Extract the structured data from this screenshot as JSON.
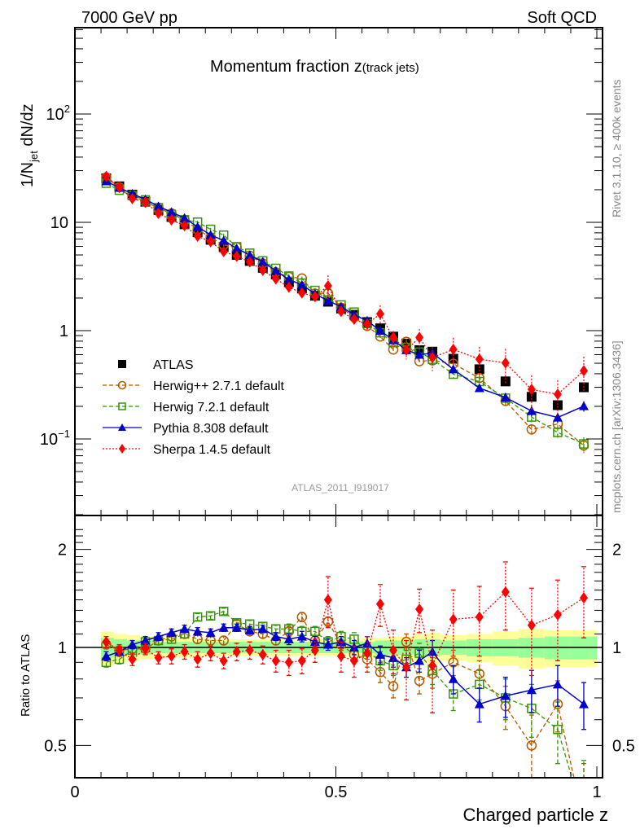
{
  "chart_data": {
    "type": "scatter",
    "header_left": "7000 GeV pp",
    "header_right": "Soft QCD",
    "title": "Momentum fraction z",
    "title_suffix": "(track jets)",
    "analysis_id": "ATLAS_2011_I919017",
    "side_label_top": "Rivet 3.1.10, ≥ 400k events",
    "side_label_bottom": "mcplots.cern.ch [arXiv:1306.3436]",
    "xlabel": "Charged particle z",
    "ylabel": "1/N_jet dN/dz",
    "ylabel_main": "1/N",
    "ylabel_sub": "jet",
    "ylabel_rest": " dN/dz",
    "ratio_ylabel": "Ratio to ATLAS",
    "xlim": [
      0,
      1.02
    ],
    "ylim": [
      0.022,
      700
    ],
    "ratio_ylim": [
      0.42,
      2.4
    ],
    "yscale": "log",
    "ratio_yscale": "log",
    "x_ticks": [
      {
        "value": 0,
        "label": "0"
      },
      {
        "value": 0.5,
        "label": "0.5"
      },
      {
        "value": 1,
        "label": "1"
      }
    ],
    "y_ticks": [
      {
        "value": 100,
        "label": "10",
        "sup": "2"
      },
      {
        "value": 10,
        "label": "10",
        "sup": ""
      },
      {
        "value": 1,
        "label": "1",
        "sup": ""
      },
      {
        "value": 0.1,
        "label": "10",
        "sup": "−1"
      }
    ],
    "ratio_ticks": [
      {
        "value": 2,
        "label": "2"
      },
      {
        "value": 1,
        "label": "1"
      },
      {
        "value": 0.5,
        "label": "0.5"
      }
    ],
    "x": [
      0.06,
      0.085,
      0.11,
      0.135,
      0.16,
      0.185,
      0.21,
      0.235,
      0.26,
      0.285,
      0.31,
      0.335,
      0.36,
      0.385,
      0.41,
      0.435,
      0.46,
      0.485,
      0.51,
      0.535,
      0.56,
      0.585,
      0.61,
      0.635,
      0.66,
      0.685,
      0.725,
      0.775,
      0.825,
      0.875,
      0.925,
      0.975
    ],
    "band": {
      "x_edges": [
        0.05,
        0.075,
        0.1,
        0.125,
        0.15,
        0.175,
        0.2,
        0.225,
        0.25,
        0.275,
        0.3,
        0.325,
        0.35,
        0.375,
        0.4,
        0.425,
        0.45,
        0.475,
        0.5,
        0.525,
        0.55,
        0.575,
        0.6,
        0.625,
        0.65,
        0.675,
        0.7,
        0.75,
        0.8,
        0.85,
        0.9,
        0.95,
        1.0
      ],
      "inner": [
        0.07,
        0.06,
        0.05,
        0.05,
        0.04,
        0.04,
        0.04,
        0.04,
        0.04,
        0.04,
        0.04,
        0.04,
        0.04,
        0.04,
        0.04,
        0.04,
        0.04,
        0.04,
        0.04,
        0.04,
        0.04,
        0.05,
        0.05,
        0.05,
        0.06,
        0.06,
        0.05,
        0.06,
        0.06,
        0.07,
        0.08,
        0.08
      ],
      "outer": [
        0.12,
        0.1,
        0.09,
        0.08,
        0.07,
        0.07,
        0.07,
        0.06,
        0.06,
        0.06,
        0.06,
        0.06,
        0.06,
        0.06,
        0.06,
        0.06,
        0.06,
        0.06,
        0.06,
        0.06,
        0.07,
        0.07,
        0.08,
        0.08,
        0.1,
        0.11,
        0.09,
        0.1,
        0.12,
        0.14,
        0.13,
        0.13
      ],
      "inner_color": "#99ff99",
      "outer_color": "#ffff99"
    },
    "series": [
      {
        "name": "ATLAS",
        "color": "#000000",
        "marker": "square-filled",
        "line": "none",
        "values": [
          25.5,
          21.5,
          18,
          15.5,
          13,
          11.2,
          9.6,
          8.1,
          6.9,
          5.9,
          5.0,
          4.4,
          3.8,
          3.3,
          2.8,
          2.45,
          2.1,
          1.85,
          1.6,
          1.4,
          1.2,
          1.05,
          0.88,
          0.76,
          0.66,
          0.64,
          0.55,
          0.44,
          0.34,
          0.245,
          0.205,
          0.3
        ],
        "errors": [
          0.5,
          0.4,
          0.3,
          0.3,
          0.2,
          0.2,
          0.2,
          0.15,
          0.12,
          0.1,
          0.1,
          0.08,
          0.07,
          0.06,
          0.05,
          0.05,
          0.04,
          0.04,
          0.04,
          0.03,
          0.03,
          0.03,
          0.02,
          0.02,
          0.02,
          0.02,
          0.02,
          0.02,
          0.015,
          0.015,
          0.015,
          0.02
        ]
      },
      {
        "name": "Herwig++ 2.7.1 default",
        "color": "#b35900",
        "marker": "circle-open",
        "line": "dashed",
        "ratio": [
          1.02,
          0.98,
          0.99,
          0.99,
          1.05,
          1.08,
          1.1,
          1.06,
          1.05,
          1.05,
          1.18,
          1.12,
          1.1,
          1.05,
          1.12,
          1.24,
          1.05,
          1.2,
          1.02,
          0.95,
          0.92,
          0.84,
          0.76,
          1.04,
          0.79,
          0.83,
          0.9,
          0.83,
          0.66,
          0.5,
          0.67,
          0.29
        ],
        "ratio_err": [
          0.03,
          0.03,
          0.03,
          0.03,
          0.03,
          0.03,
          0.03,
          0.03,
          0.03,
          0.03,
          0.03,
          0.03,
          0.03,
          0.03,
          0.04,
          0.04,
          0.04,
          0.04,
          0.04,
          0.05,
          0.05,
          0.06,
          0.06,
          0.06,
          0.07,
          0.08,
          0.08,
          0.08,
          0.1,
          0.12,
          0.12,
          0.15
        ]
      },
      {
        "name": "Herwig 7.2.1 default",
        "color": "#339900",
        "marker": "square-open",
        "line": "dashed",
        "ratio": [
          0.9,
          0.92,
          0.98,
          1.04,
          1.05,
          1.06,
          1.1,
          1.24,
          1.25,
          1.29,
          1.19,
          1.18,
          1.16,
          1.14,
          1.14,
          1.12,
          1.12,
          1.04,
          1.08,
          1.06,
          0.97,
          0.91,
          0.88,
          0.92,
          0.96,
          0.85,
          0.72,
          0.77,
          0.7,
          0.65,
          0.56,
          0.3
        ],
        "ratio_err": [
          0.03,
          0.03,
          0.03,
          0.03,
          0.03,
          0.03,
          0.03,
          0.03,
          0.03,
          0.03,
          0.03,
          0.03,
          0.03,
          0.03,
          0.04,
          0.04,
          0.04,
          0.04,
          0.04,
          0.05,
          0.05,
          0.06,
          0.06,
          0.06,
          0.07,
          0.08,
          0.08,
          0.08,
          0.1,
          0.12,
          0.12,
          0.15
        ]
      },
      {
        "name": "Pythia 8.308 default",
        "color": "#0000cc",
        "marker": "triangle-filled",
        "line": "solid",
        "ratio": [
          0.94,
          0.97,
          1.02,
          1.05,
          1.08,
          1.11,
          1.14,
          1.12,
          1.11,
          1.15,
          1.15,
          1.13,
          1.14,
          1.08,
          1.06,
          1.08,
          1.04,
          1.02,
          1.04,
          1.0,
          1.03,
          0.95,
          0.93,
          0.87,
          0.91,
          0.97,
          0.8,
          0.67,
          0.71,
          0.74,
          0.77,
          0.67
        ],
        "ratio_err": [
          0.03,
          0.03,
          0.03,
          0.03,
          0.03,
          0.03,
          0.03,
          0.03,
          0.03,
          0.03,
          0.03,
          0.03,
          0.03,
          0.03,
          0.04,
          0.04,
          0.04,
          0.04,
          0.04,
          0.05,
          0.05,
          0.06,
          0.06,
          0.06,
          0.07,
          0.08,
          0.08,
          0.08,
          0.1,
          0.11,
          0.11,
          0.11
        ]
      },
      {
        "name": "Sherpa 1.4.5 default",
        "color": "#ff0000",
        "marker": "diamond-filled",
        "line": "dotted",
        "ratio": [
          1.04,
          0.98,
          0.92,
          0.99,
          0.93,
          0.94,
          0.97,
          0.92,
          0.96,
          0.91,
          0.97,
          0.98,
          0.95,
          0.91,
          0.9,
          0.91,
          0.98,
          1.4,
          0.94,
          0.91,
          0.96,
          1.36,
          0.98,
          0.87,
          1.31,
          0.88,
          1.22,
          1.24,
          1.48,
          1.17,
          1.26,
          1.42
        ],
        "ratio_err": [
          0.04,
          0.04,
          0.04,
          0.04,
          0.04,
          0.05,
          0.05,
          0.05,
          0.05,
          0.05,
          0.06,
          0.06,
          0.06,
          0.07,
          0.08,
          0.08,
          0.08,
          0.25,
          0.1,
          0.1,
          0.12,
          0.2,
          0.15,
          0.18,
          0.2,
          0.25,
          0.28,
          0.3,
          0.35,
          0.35,
          0.35,
          0.35
        ]
      }
    ],
    "legend_position": "middle-left"
  }
}
